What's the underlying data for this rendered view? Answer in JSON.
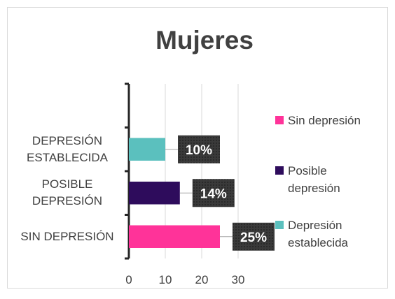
{
  "chart_data": {
    "type": "bar",
    "orientation": "horizontal",
    "title": "Mujeres",
    "categories": [
      "SIN DEPRESIÓN",
      "POSIBLE DEPRESIÓN",
      "DEPRESIÓN ESTABLECIDA",
      null
    ],
    "values": [
      25,
      14,
      10,
      null
    ],
    "value_labels": [
      "25%",
      "14%",
      "10%",
      null
    ],
    "colors": [
      "#ff3399",
      "#2e0c5c",
      "#5bc0be",
      null
    ],
    "xlim": [
      0,
      30
    ],
    "xticks": [
      0,
      10,
      20,
      30
    ],
    "grid": true,
    "legend": "right"
  }
}
